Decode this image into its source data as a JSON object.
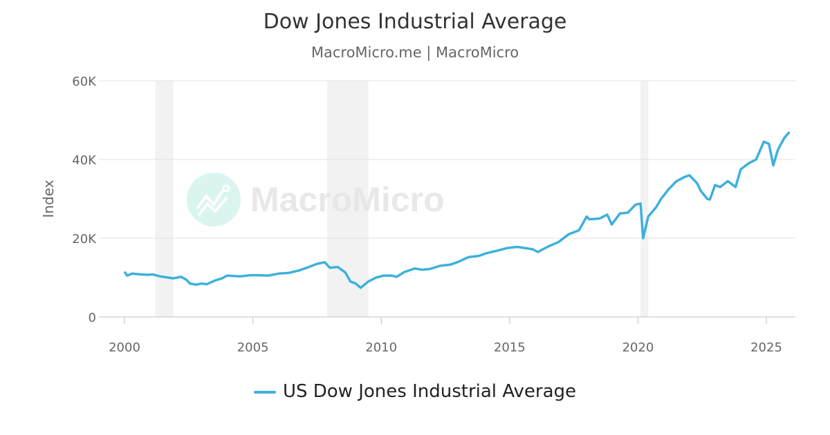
{
  "chart_data": {
    "type": "line",
    "title": "Dow Jones Industrial Average",
    "subtitle": "MacroMicro.me | MacroMicro",
    "ylabel": "Index",
    "xlabel": "",
    "xlim": [
      2000,
      2026.1
    ],
    "ylim": [
      0,
      60000
    ],
    "x_ticks": [
      2000,
      2005,
      2010,
      2015,
      2020,
      2025
    ],
    "x_tick_labels": [
      "2000",
      "2005",
      "2010",
      "2015",
      "2020",
      "2025"
    ],
    "y_ticks": [
      0,
      20000,
      40000,
      60000
    ],
    "y_tick_labels": [
      "0",
      "20K",
      "40K",
      "60K"
    ],
    "grid": "horizontal",
    "legend_position": "bottom",
    "watermark": "MacroMicro",
    "colors": {
      "series": "#3eb0dc",
      "recession": "#f2f2f2",
      "grid": "#e6e6e6"
    },
    "recession_periods": [
      [
        2001.2,
        2001.9
      ],
      [
        2007.9,
        2009.5
      ],
      [
        2020.1,
        2020.4
      ]
    ],
    "series": [
      {
        "name": "US Dow Jones Industrial Average",
        "x": [
          2000.0,
          2000.1,
          2000.3,
          2000.6,
          2000.9,
          2001.1,
          2001.4,
          2001.7,
          2001.9,
          2002.2,
          2002.4,
          2002.55,
          2002.8,
          2003.0,
          2003.2,
          2003.5,
          2003.8,
          2004.0,
          2004.5,
          2004.9,
          2005.2,
          2005.6,
          2006.0,
          2006.4,
          2006.8,
          2007.1,
          2007.5,
          2007.8,
          2008.0,
          2008.3,
          2008.6,
          2008.8,
          2009.0,
          2009.2,
          2009.5,
          2009.8,
          2010.1,
          2010.4,
          2010.6,
          2010.9,
          2011.3,
          2011.6,
          2011.9,
          2012.3,
          2012.7,
          2013.0,
          2013.4,
          2013.8,
          2014.1,
          2014.5,
          2014.9,
          2015.3,
          2015.6,
          2015.9,
          2016.1,
          2016.5,
          2016.9,
          2017.3,
          2017.7,
          2018.0,
          2018.1,
          2018.5,
          2018.8,
          2018.98,
          2019.3,
          2019.6,
          2019.9,
          2020.1,
          2020.2,
          2020.4,
          2020.7,
          2020.9,
          2021.2,
          2021.5,
          2021.8,
          2022.0,
          2022.3,
          2022.45,
          2022.7,
          2022.8,
          2023.0,
          2023.2,
          2023.5,
          2023.8,
          2024.0,
          2024.3,
          2024.6,
          2024.9,
          2025.1,
          2025.27,
          2025.45,
          2025.7,
          2025.9
        ],
        "values": [
          11500,
          10500,
          11000,
          10800,
          10700,
          10800,
          10300,
          10000,
          9800,
          10200,
          9500,
          8500,
          8200,
          8500,
          8300,
          9200,
          9800,
          10500,
          10300,
          10600,
          10600,
          10500,
          11000,
          11200,
          11800,
          12500,
          13500,
          13900,
          12500,
          12700,
          11300,
          9000,
          8500,
          7400,
          9000,
          10000,
          10500,
          10500,
          10200,
          11400,
          12300,
          12000,
          12200,
          13000,
          13300,
          14000,
          15200,
          15500,
          16200,
          16800,
          17500,
          17800,
          17500,
          17200,
          16500,
          17900,
          19000,
          21000,
          22000,
          25500,
          24800,
          25000,
          26000,
          23500,
          26300,
          26500,
          28500,
          28800,
          20000,
          25500,
          27800,
          30000,
          32500,
          34500,
          35500,
          36000,
          34000,
          32000,
          30000,
          29800,
          33500,
          33000,
          34500,
          33000,
          37500,
          39000,
          40000,
          44500,
          44000,
          38500,
          42500,
          45500,
          47000
        ]
      }
    ]
  }
}
